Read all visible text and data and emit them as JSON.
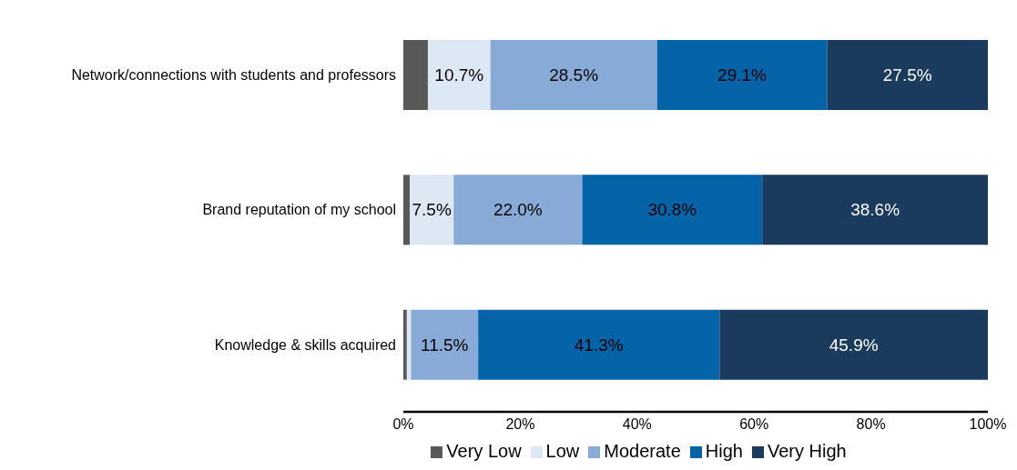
{
  "chart_data": {
    "type": "bar",
    "orientation": "horizontal",
    "stacked": true,
    "categories": [
      "Network/connections with students and professors",
      "Brand reputation of my school",
      "Knowledge & skills acquired"
    ],
    "series": [
      {
        "name": "Very Low",
        "color": "#595959",
        "values": [
          4.2,
          1.1,
          0.6
        ],
        "value_labels": [
          null,
          null,
          null
        ]
      },
      {
        "name": "Low",
        "color": "#dde8f5",
        "values": [
          10.7,
          7.5,
          0.7
        ],
        "value_labels": [
          "10.7%",
          "7.5%",
          null
        ]
      },
      {
        "name": "Moderate",
        "color": "#88aad6",
        "values": [
          28.5,
          22.0,
          11.5
        ],
        "value_labels": [
          "28.5%",
          "22.0%",
          "11.5%"
        ]
      },
      {
        "name": "High",
        "color": "#0563a8",
        "values": [
          29.1,
          30.8,
          41.3
        ],
        "value_labels": [
          "29.1%",
          "30.8%",
          "41.3%"
        ]
      },
      {
        "name": "Very High",
        "color": "#1a3a5e",
        "values": [
          27.5,
          38.6,
          45.9
        ],
        "value_labels": [
          "27.5%",
          "38.6%",
          "45.9%"
        ]
      }
    ],
    "xlim": [
      0,
      100
    ],
    "xticks": [
      {
        "value": 0,
        "label": "0%"
      },
      {
        "value": 20,
        "label": "20%"
      },
      {
        "value": 40,
        "label": "40%"
      },
      {
        "value": 60,
        "label": "60%"
      },
      {
        "value": 80,
        "label": "80%"
      },
      {
        "value": 100,
        "label": "100%"
      }
    ],
    "grid": false,
    "legend": "bottom"
  }
}
